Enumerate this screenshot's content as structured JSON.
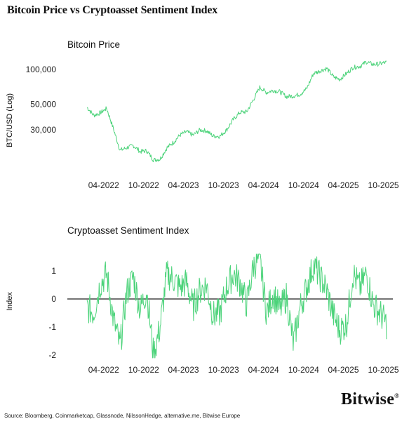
{
  "title": "Bitcoin Price vs Cryptoasset Sentiment Index",
  "source": "Source: Bloomberg, Coinmarketcap, Glassnode, NilssonHedge, alternative.me, Bitwise Europe",
  "logo": {
    "text": "Bitwise",
    "mark": "®"
  },
  "colors": {
    "line": "#4cd37a",
    "axis": "#222222",
    "text": "#111111"
  },
  "chart_data": [
    {
      "type": "line",
      "title": "Bitcoin Price",
      "ylabel": "BTC/USD (Log)",
      "y_scale": "log",
      "y_ticks": [
        30000,
        50000,
        100000
      ],
      "y_tick_labels": [
        "30,000",
        "50,000",
        "100,000"
      ],
      "x_tick_labels": [
        "04-2022",
        "10-2022",
        "04-2023",
        "10-2023",
        "04-2024",
        "10-2024",
        "04-2025",
        "10-2025"
      ],
      "ylim": [
        13000,
        130000
      ],
      "grid": false,
      "series": [
        {
          "points": [
            [
              "2022-01",
              47000
            ],
            [
              "2022-02",
              40000
            ],
            [
              "2022-03",
              42000
            ],
            [
              "2022-04",
              46000
            ],
            [
              "2022-05",
              31000
            ],
            [
              "2022-06",
              20000
            ],
            [
              "2022-07",
              21000
            ],
            [
              "2022-08",
              22000
            ],
            [
              "2022-09",
              19500
            ],
            [
              "2022-10",
              19800
            ],
            [
              "2022-11",
              16500
            ],
            [
              "2022-12",
              16800
            ],
            [
              "2023-01",
              21000
            ],
            [
              "2023-02",
              23500
            ],
            [
              "2023-03",
              27000
            ],
            [
              "2023-04",
              29000
            ],
            [
              "2023-05",
              27000
            ],
            [
              "2023-06",
              30000
            ],
            [
              "2023-07",
              29500
            ],
            [
              "2023-08",
              26500
            ],
            [
              "2023-09",
              26500
            ],
            [
              "2023-10",
              30000
            ],
            [
              "2023-11",
              37000
            ],
            [
              "2023-12",
              42500
            ],
            [
              "2024-01",
              43000
            ],
            [
              "2024-02",
              55000
            ],
            [
              "2024-03",
              70000
            ],
            [
              "2024-04",
              63000
            ],
            [
              "2024-05",
              66000
            ],
            [
              "2024-06",
              64000
            ],
            [
              "2024-07",
              58000
            ],
            [
              "2024-08",
              59000
            ],
            [
              "2024-09",
              61000
            ],
            [
              "2024-10",
              68000
            ],
            [
              "2024-11",
              92000
            ],
            [
              "2024-12",
              97000
            ],
            [
              "2025-01",
              102000
            ],
            [
              "2025-02",
              86000
            ],
            [
              "2025-03",
              82000
            ],
            [
              "2025-04",
              92000
            ],
            [
              "2025-05",
              104000
            ],
            [
              "2025-06",
              106000
            ],
            [
              "2025-07",
              116000
            ],
            [
              "2025-08",
              110000
            ],
            [
              "2025-09",
              112000
            ],
            [
              "2025-10",
              115000
            ]
          ]
        }
      ]
    },
    {
      "type": "line",
      "title": "Cryptoasset Sentiment Index",
      "ylabel": "Index",
      "y_ticks": [
        -2,
        -1,
        0,
        1
      ],
      "y_tick_labels": [
        "-2",
        "-1",
        "0",
        "1"
      ],
      "x_tick_labels": [
        "04-2022",
        "10-2022",
        "04-2023",
        "10-2023",
        "04-2024",
        "10-2024",
        "04-2025",
        "10-2025"
      ],
      "ylim": [
        -2.1,
        1.6
      ],
      "zero_line": true,
      "grid": false,
      "series": [
        {
          "points": [
            [
              "2022-01",
              -0.3
            ],
            [
              "2022-02",
              -0.5
            ],
            [
              "2022-03",
              0.5
            ],
            [
              "2022-04",
              0.9
            ],
            [
              "2022-05",
              -0.7
            ],
            [
              "2022-06",
              -1.7
            ],
            [
              "2022-07",
              0.2
            ],
            [
              "2022-08",
              0.8
            ],
            [
              "2022-09",
              -0.4
            ],
            [
              "2022-10",
              0.3
            ],
            [
              "2022-11",
              -2.0
            ],
            [
              "2022-12",
              -1.0
            ],
            [
              "2023-01",
              0.9
            ],
            [
              "2023-02",
              0.7
            ],
            [
              "2023-03",
              0.4
            ],
            [
              "2023-04",
              0.6
            ],
            [
              "2023-05",
              -0.3
            ],
            [
              "2023-06",
              0.3
            ],
            [
              "2023-07",
              0.5
            ],
            [
              "2023-08",
              -0.6
            ],
            [
              "2023-09",
              -0.5
            ],
            [
              "2023-10",
              0.4
            ],
            [
              "2023-11",
              0.9
            ],
            [
              "2023-12",
              0.6
            ],
            [
              "2024-01",
              -0.2
            ],
            [
              "2024-02",
              1.2
            ],
            [
              "2024-03",
              1.4
            ],
            [
              "2024-04",
              -0.5
            ],
            [
              "2024-05",
              0.2
            ],
            [
              "2024-06",
              -0.4
            ],
            [
              "2024-07",
              0.1
            ],
            [
              "2024-08",
              -1.6
            ],
            [
              "2024-09",
              -0.3
            ],
            [
              "2024-10",
              0.4
            ],
            [
              "2024-11",
              1.2
            ],
            [
              "2024-12",
              0.8
            ],
            [
              "2025-01",
              0.3
            ],
            [
              "2025-02",
              -0.6
            ],
            [
              "2025-03",
              -1.1
            ],
            [
              "2025-04",
              -0.9
            ],
            [
              "2025-05",
              0.9
            ],
            [
              "2025-06",
              0.4
            ],
            [
              "2025-07",
              0.9
            ],
            [
              "2025-08",
              -0.2
            ],
            [
              "2025-09",
              -0.5
            ],
            [
              "2025-10",
              -0.9
            ]
          ]
        }
      ]
    }
  ]
}
